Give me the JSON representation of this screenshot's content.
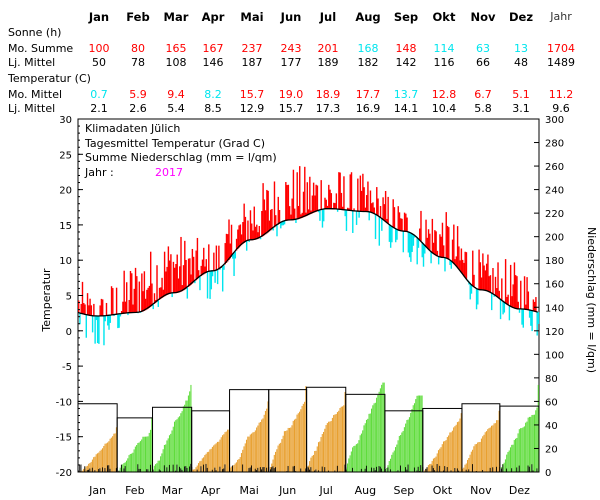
{
  "stats": {
    "months": [
      "Jan",
      "Feb",
      "Mar",
      "Apr",
      "Mai",
      "Jun",
      "Jul",
      "Aug",
      "Sep",
      "Okt",
      "Nov",
      "Dez"
    ],
    "year_label": "Jahr",
    "sun_header": "Sonne (h)",
    "sun_sum_label": "Mo. Summe",
    "sun_sum": [
      "100",
      "80",
      "165",
      "167",
      "237",
      "243",
      "201",
      "168",
      "148",
      "114",
      "63",
      "13",
      "1704"
    ],
    "sun_sum_colors": [
      "#ff0000",
      "#ff0000",
      "#ff0000",
      "#ff0000",
      "#ff0000",
      "#ff0000",
      "#ff0000",
      "#00e5ee",
      "#ff0000",
      "#00e5ee",
      "#00e5ee",
      "#00e5ee",
      "#ff0000"
    ],
    "sun_ltm_label": "Lj. Mittel",
    "sun_ltm": [
      "50",
      "78",
      "108",
      "146",
      "187",
      "177",
      "189",
      "182",
      "142",
      "116",
      "66",
      "48",
      "1489"
    ],
    "temp_header": "Temperatur (C)",
    "temp_mean_label": "Mo. Mittel",
    "temp_mean": [
      "0.7",
      "5.9",
      "9.4",
      "8.2",
      "15.7",
      "19.0",
      "18.9",
      "17.7",
      "13.7",
      "12.8",
      "6.7",
      "5.1",
      "11.2"
    ],
    "temp_mean_colors": [
      "#00e5ee",
      "#ff0000",
      "#ff0000",
      "#00e5ee",
      "#ff0000",
      "#ff0000",
      "#ff0000",
      "#ff0000",
      "#00e5ee",
      "#ff0000",
      "#ff0000",
      "#ff0000",
      "#ff0000"
    ],
    "temp_ltm_label": "Lj. Mittel",
    "temp_ltm": [
      "2.1",
      "2.6",
      "5.4",
      "8.5",
      "12.9",
      "15.7",
      "17.3",
      "16.9",
      "14.1",
      "10.4",
      "5.8",
      "3.1",
      "9.6"
    ]
  },
  "chart_data": {
    "type": "area",
    "legend": [
      "Klimadaten Jülich",
      "Tagesmittel Temperatur (Grad C)",
      "Summe Niederschlag (mm = l/qm)"
    ],
    "year_label": "Jahr :",
    "year_value": "2017",
    "ylabel_left": "Temperatur",
    "ylabel_right": "Niederschlag (mm = l/qm)",
    "ylim_left": [
      -20,
      30
    ],
    "yticks_left": [
      "-20",
      "-15",
      "-10",
      "-5",
      "0",
      "5",
      "10",
      "15",
      "20",
      "25",
      "30"
    ],
    "ylim_right": [
      0,
      300
    ],
    "yticks_right": [
      "0",
      "20",
      "40",
      "60",
      "80",
      "100",
      "120",
      "140",
      "160",
      "180",
      "200",
      "220",
      "240",
      "260",
      "280",
      "300"
    ],
    "x_months": [
      "Jan",
      "Feb",
      "Mar",
      "Apr",
      "Mai",
      "Jun",
      "Jul",
      "Aug",
      "Sep",
      "Okt",
      "Nov",
      "Dez"
    ],
    "temperature_normal_monthly": [
      2.1,
      2.6,
      5.4,
      8.5,
      12.9,
      15.7,
      17.3,
      16.9,
      14.1,
      10.4,
      5.8,
      3.1
    ],
    "temperature_daily_mean_monthly": [
      0.7,
      5.9,
      9.4,
      8.2,
      15.7,
      19.0,
      18.9,
      17.7,
      13.7,
      12.8,
      6.7,
      5.1
    ],
    "precip_normal_monthly": [
      58,
      46,
      55,
      52,
      70,
      70,
      72,
      66,
      52,
      54,
      58,
      56
    ],
    "precip_cumulative_monthly_end": [
      38,
      46,
      74,
      36,
      60,
      73,
      68,
      76,
      65,
      50,
      52,
      74
    ],
    "precip_bar_color_month": [
      "#e8a030",
      "#5fdc3c",
      "#5fdc3c",
      "#e8a030",
      "#e8a030",
      "#e8a030",
      "#e8a030",
      "#5fdc3c",
      "#5fdc3c",
      "#e8a030",
      "#e8a030",
      "#5fdc3c"
    ],
    "colors": {
      "warm": "#ff0000",
      "cold": "#00e5ee",
      "normal_line": "#000000",
      "precip_below": "#e8a030",
      "precip_above": "#5fdc3c",
      "year_text": "#ff00ff"
    }
  }
}
